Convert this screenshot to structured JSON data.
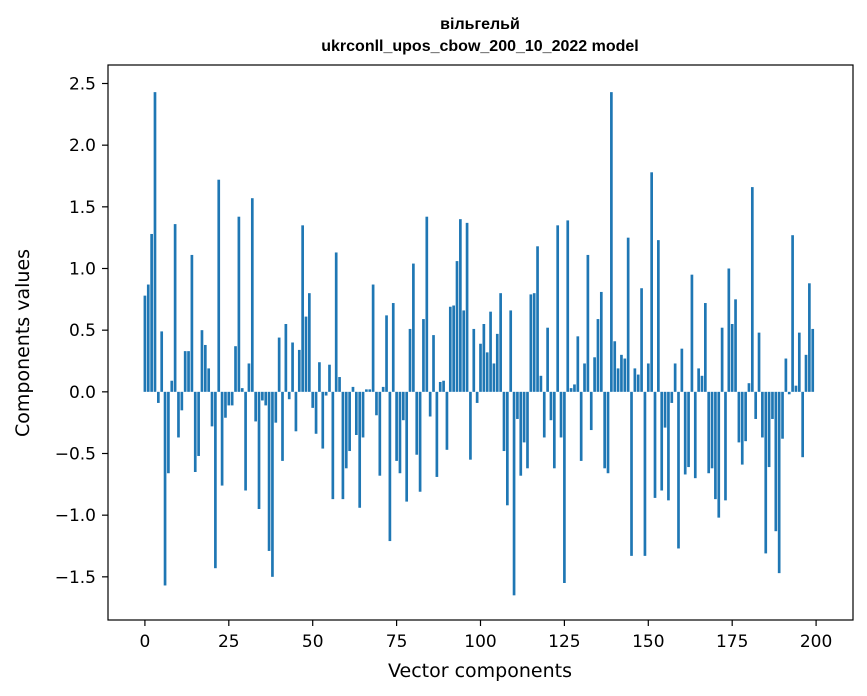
{
  "chart_data": {
    "type": "bar",
    "title": "вільгельй",
    "subtitle": "ukrconll_upos_cbow_200_10_2022 model",
    "xlabel": "Vector components",
    "ylabel": "Components values",
    "xlim": [
      -11,
      211
    ],
    "ylim": [
      -1.85,
      2.65
    ],
    "xticks": [
      0,
      25,
      50,
      75,
      100,
      125,
      150,
      175,
      200
    ],
    "yticks": [
      -1.5,
      -1.0,
      -0.5,
      0.0,
      0.5,
      1.0,
      1.5,
      2.0,
      2.5
    ],
    "ytick_labels": [
      "−1.5",
      "−1.0",
      "−0.5",
      "0.0",
      "0.5",
      "1.0",
      "1.5",
      "2.0",
      "2.5"
    ],
    "bar_color": "#1f77b4",
    "grid": false,
    "values": [
      0.78,
      0.87,
      1.28,
      2.43,
      -0.09,
      0.49,
      -1.57,
      -0.66,
      0.09,
      1.36,
      -0.37,
      -0.15,
      0.33,
      0.33,
      1.11,
      -0.65,
      -0.52,
      0.5,
      0.38,
      0.19,
      -0.28,
      -1.43,
      1.72,
      -0.76,
      -0.21,
      -0.11,
      -0.11,
      0.37,
      1.42,
      0.03,
      -0.8,
      0.23,
      1.57,
      -0.24,
      -0.95,
      -0.07,
      -0.11,
      -1.29,
      -1.5,
      -0.25,
      0.44,
      -0.56,
      0.55,
      -0.06,
      0.4,
      -0.32,
      0.34,
      1.35,
      0.61,
      0.8,
      -0.13,
      -0.34,
      0.24,
      -0.46,
      -0.03,
      0.22,
      -0.87,
      1.13,
      0.12,
      -0.87,
      -0.62,
      -0.48,
      0.04,
      -0.35,
      -0.94,
      -0.37,
      0.02,
      0.02,
      0.87,
      -0.19,
      -0.68,
      0.04,
      0.62,
      -1.21,
      0.72,
      -0.56,
      -0.66,
      -0.23,
      -0.89,
      0.51,
      1.04,
      -0.51,
      -0.81,
      0.59,
      1.42,
      -0.2,
      0.46,
      -0.69,
      0.08,
      0.09,
      -0.47,
      0.69,
      0.7,
      1.06,
      1.4,
      0.66,
      1.37,
      -0.55,
      0.51,
      -0.09,
      0.39,
      0.55,
      0.32,
      0.65,
      0.23,
      0.47,
      0.8,
      -0.48,
      -0.92,
      0.66,
      -1.65,
      -0.22,
      -0.68,
      -0.41,
      -0.62,
      0.79,
      0.8,
      1.18,
      0.13,
      -0.37,
      0.52,
      -0.23,
      -0.62,
      1.35,
      -0.37,
      -1.55,
      1.39,
      0.03,
      0.06,
      0.45,
      -0.56,
      0.23,
      1.11,
      -0.31,
      0.28,
      0.59,
      0.81,
      -0.62,
      -0.66,
      2.43,
      0.41,
      0.19,
      0.3,
      0.27,
      1.25,
      -1.33,
      0.19,
      0.14,
      0.84,
      -1.33,
      0.23,
      1.78,
      -0.86,
      1.23,
      -0.8,
      -0.29,
      -0.88,
      -0.09,
      0.23,
      -1.27,
      0.35,
      -0.67,
      -0.61,
      0.95,
      -0.7,
      0.19,
      0.13,
      0.72,
      -0.66,
      -0.62,
      -0.87,
      -1.02,
      0.52,
      -0.88,
      1.0,
      0.55,
      0.75,
      -0.41,
      -0.59,
      -0.4,
      0.07,
      1.66,
      -0.22,
      0.48,
      -0.37,
      -1.31,
      -0.61,
      -0.22,
      -1.13,
      -1.47,
      -0.38,
      0.27,
      -0.02,
      1.27,
      0.05,
      0.48,
      -0.53,
      0.3,
      0.88,
      0.51
    ]
  }
}
